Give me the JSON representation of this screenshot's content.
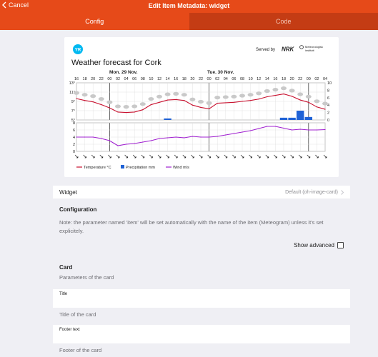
{
  "navbar": {
    "back_label": "Cancel",
    "title": "Edit Item Metadata: widget"
  },
  "tabs": [
    {
      "label": "Config",
      "active": true
    },
    {
      "label": "Code",
      "active": false
    }
  ],
  "meteogram": {
    "logo_text": "YR",
    "served_by": "Served by",
    "nrk": "NRK",
    "met_line1": "Meteorologisk",
    "met_line2": "institutt",
    "title": "Weather forecast for Cork",
    "day1": "Mon. 29 Nov.",
    "day2": "Tue. 30 Nov.",
    "hours": [
      "16",
      "18",
      "20",
      "22",
      "00",
      "02",
      "04",
      "06",
      "08",
      "10",
      "12",
      "14",
      "16",
      "18",
      "20",
      "22",
      "00",
      "02",
      "04",
      "06",
      "08",
      "10",
      "12",
      "14",
      "16",
      "18",
      "20",
      "22",
      "00",
      "02",
      "04"
    ],
    "temp_ticks": [
      "13°",
      "11°",
      "9°",
      "7°",
      "5°"
    ],
    "precip_ticks": [
      "10",
      "8",
      "6",
      "4",
      "2",
      "0"
    ],
    "wind_ticks": [
      "8",
      "6",
      "4",
      "2",
      "0"
    ],
    "legend": {
      "temperature": "Temperature °C",
      "precipitation": "Precipitation mm",
      "wind": "Wind m/s"
    },
    "colors": {
      "temperature": "#c8102e",
      "precipitation": "#1f62d6",
      "wind": "#a020d0"
    }
  },
  "chart_data": {
    "type": "line",
    "title": "Weather forecast for Cork",
    "x": [
      "16",
      "18",
      "20",
      "22",
      "00",
      "02",
      "04",
      "06",
      "08",
      "10",
      "12",
      "14",
      "16",
      "18",
      "20",
      "22",
      "00",
      "02",
      "04",
      "06",
      "08",
      "10",
      "12",
      "14",
      "16",
      "18",
      "20",
      "22",
      "00",
      "02",
      "04"
    ],
    "series": [
      {
        "name": "Temperature °C",
        "values": [
          9.6,
          9.2,
          8.9,
          8.3,
          7.6,
          6.7,
          6.6,
          6.7,
          7.2,
          8.3,
          8.8,
          9.3,
          9.4,
          9.2,
          8.2,
          7.7,
          7.4,
          8.6,
          8.7,
          8.8,
          9.0,
          9.2,
          9.5,
          10.0,
          10.3,
          10.6,
          10.1,
          9.3,
          8.8,
          7.8,
          7.3
        ]
      },
      {
        "name": "Precipitation mm",
        "values": [
          0,
          0,
          0,
          0,
          0,
          0,
          0,
          0,
          0,
          0,
          0,
          0.4,
          0,
          0,
          0,
          0,
          0,
          0,
          0,
          0,
          0,
          0,
          0,
          0,
          0,
          0.6,
          0.6,
          2.5,
          0.8,
          0,
          0
        ]
      },
      {
        "name": "Wind m/s",
        "values": [
          4.0,
          4.0,
          4.0,
          3.6,
          3.0,
          1.6,
          2.0,
          2.2,
          2.6,
          3.0,
          3.6,
          3.8,
          4.0,
          3.8,
          4.2,
          4.0,
          4.0,
          4.2,
          4.6,
          5.0,
          5.4,
          5.8,
          6.4,
          7.0,
          7.0,
          6.5,
          6.0,
          6.2,
          6.0,
          6.0,
          6.1
        ]
      }
    ],
    "temp_ylim": [
      5,
      13
    ],
    "precip_ylim": [
      0,
      10
    ],
    "wind_ylim": [
      0,
      8
    ],
    "legend": "bottom",
    "grid": true
  },
  "widget_row": {
    "label": "Widget",
    "value": "Default (oh-image-card)"
  },
  "configuration": {
    "title": "Configuration",
    "note": "Note: the parameter named 'item' will be set automatically with the name of the item (Meteogram) unless it's set explicitely.",
    "show_advanced": "Show advanced"
  },
  "card_section": {
    "title": "Card",
    "subtitle": "Parameters of the card"
  },
  "fields": [
    {
      "label": "Title",
      "value": "",
      "help": "Title of the card"
    },
    {
      "label": "Footer text",
      "value": "",
      "help": "Footer of the card"
    }
  ]
}
